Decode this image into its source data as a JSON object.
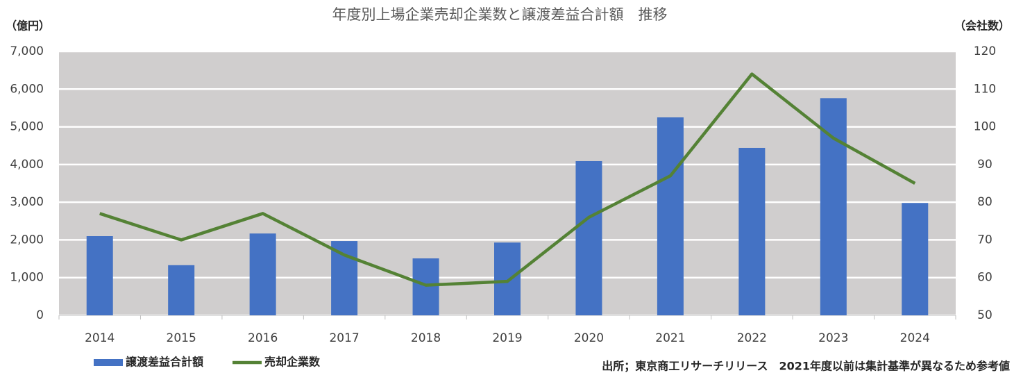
{
  "chart_data": {
    "type": "bar",
    "title": "年度別上場企業売却企業数と譲渡差益合計額　推移",
    "y_label": "（億円）",
    "y2_label": "（会社数）",
    "source": "出所；東京商工リサーチリリース　2021年度以前は集計基準が異なるため参考値",
    "categories": [
      "2014",
      "2015",
      "2016",
      "2017",
      "2018",
      "2019",
      "2020",
      "2021",
      "2022",
      "2023",
      "2024"
    ],
    "series": [
      {
        "name": "譲渡差益合計額",
        "type": "bar",
        "color": "#4472c4",
        "axis": "y",
        "values": [
          2100,
          1330,
          2170,
          1970,
          1510,
          1930,
          4090,
          5250,
          4440,
          5760,
          2980
        ]
      },
      {
        "name": "売却企業数",
        "type": "line",
        "color": "#548235",
        "axis": "y2",
        "values": [
          77,
          70,
          77,
          66,
          58,
          59,
          76,
          87,
          114,
          97,
          85
        ]
      }
    ],
    "ylim": [
      0,
      7000
    ],
    "yticks": [
      0,
      {
        "value": 1000,
        "label": "1,000"
      },
      {
        "value": 2000,
        "label": "2,000"
      },
      {
        "value": 3000,
        "label": "3,000"
      },
      {
        "value": 4000,
        "label": "4,000"
      },
      {
        "value": 5000,
        "label": "5,000"
      },
      {
        "value": 6000,
        "label": "6,000"
      },
      {
        "value": 7000,
        "label": "7,000"
      }
    ],
    "y2lim": [
      50,
      120
    ],
    "y2ticks": [
      50,
      60,
      70,
      80,
      90,
      100,
      110,
      120
    ],
    "grid": true,
    "plot_background": "#d0cece",
    "legend": "bottom-left"
  }
}
